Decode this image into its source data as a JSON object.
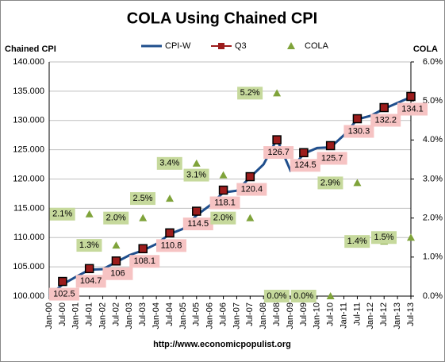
{
  "chart_data": {
    "type": "line",
    "title": "COLA Using Chained CPI",
    "y_label": "Chained CPI",
    "y2_label": "COLA",
    "footer": "http://www.economicpopulist.org",
    "categories": [
      "Jan-00",
      "Jul-00",
      "Jan-01",
      "Jul-01",
      "Jan-02",
      "Jul-02",
      "Jan-03",
      "Jul-03",
      "Jan-04",
      "Jul-04",
      "Jan-05",
      "Jul-05",
      "Jan-06",
      "Jul-06",
      "Jan-07",
      "Jul-07",
      "Jan-08",
      "Jul-08",
      "Jan-09",
      "Jul-09",
      "Jan-10",
      "Jul-10",
      "Jan-11",
      "Jul-11",
      "Jan-12",
      "Jul-12",
      "Jan-13",
      "Jul-13"
    ],
    "series": [
      {
        "name": "CPI-W",
        "color": "#1f4e8c",
        "kind": "line",
        "values": [
          100.0,
          102.0,
          103.3,
          104.5,
          104.6,
          105.8,
          107.0,
          107.8,
          108.9,
          110.6,
          111.5,
          113.8,
          115.5,
          117.7,
          118.0,
          120.3,
          122.5,
          126.8,
          121.5,
          124.3,
          125.3,
          125.4,
          127.5,
          130.2,
          130.8,
          132.0,
          133.0,
          134.0
        ]
      },
      {
        "name": "Q3",
        "color": "#9c1c1c",
        "kind": "marker",
        "values": [
          null,
          102.5,
          null,
          104.7,
          null,
          106.0,
          null,
          108.1,
          null,
          110.8,
          null,
          114.5,
          null,
          118.1,
          null,
          120.4,
          null,
          126.7,
          null,
          124.5,
          null,
          125.7,
          null,
          130.3,
          null,
          132.2,
          null,
          134.1
        ]
      },
      {
        "name": "COLA",
        "color": "#7fa33a",
        "kind": "triangle",
        "axis": "y2",
        "values": [
          null,
          null,
          null,
          2.1,
          null,
          1.3,
          null,
          2.0,
          null,
          2.5,
          null,
          3.4,
          null,
          3.1,
          null,
          2.0,
          null,
          5.2,
          null,
          0.0,
          null,
          0.0,
          null,
          2.9,
          null,
          1.4,
          null,
          1.5
        ],
        "value_labels": [
          null,
          null,
          null,
          "2.1%",
          null,
          "1.3%",
          null,
          "2.0%",
          null,
          "2.5%",
          null,
          "3.4%",
          null,
          "3.1%",
          null,
          "2.0%",
          null,
          "5.2%",
          null,
          "0.0%",
          null,
          "0.0%",
          null,
          "2.9%",
          null,
          "1.4%",
          null,
          "1.5%"
        ]
      }
    ],
    "ylim": [
      100,
      140
    ],
    "yticks": [
      {
        "value": 100,
        "label": "100.000"
      },
      {
        "value": 105,
        "label": "105.000"
      },
      {
        "value": 110,
        "label": "110.000"
      },
      {
        "value": 115,
        "label": "115.000"
      },
      {
        "value": 120,
        "label": "120.000"
      },
      {
        "value": 125,
        "label": "125.000"
      },
      {
        "value": 130,
        "label": "130.000"
      },
      {
        "value": 135,
        "label": "135.000"
      },
      {
        "value": 140,
        "label": "140.000"
      }
    ],
    "y2lim": [
      0,
      6
    ],
    "y2ticks": [
      {
        "value": 0,
        "label": "0.0%"
      },
      {
        "value": 1,
        "label": "1.0%"
      },
      {
        "value": 2,
        "label": "2.0%"
      },
      {
        "value": 3,
        "label": "3.0%"
      },
      {
        "value": 4,
        "label": "4.0%"
      },
      {
        "value": 5,
        "label": "5.0%"
      },
      {
        "value": 6,
        "label": "6.0%"
      }
    ],
    "grid": true,
    "legend": "top"
  }
}
